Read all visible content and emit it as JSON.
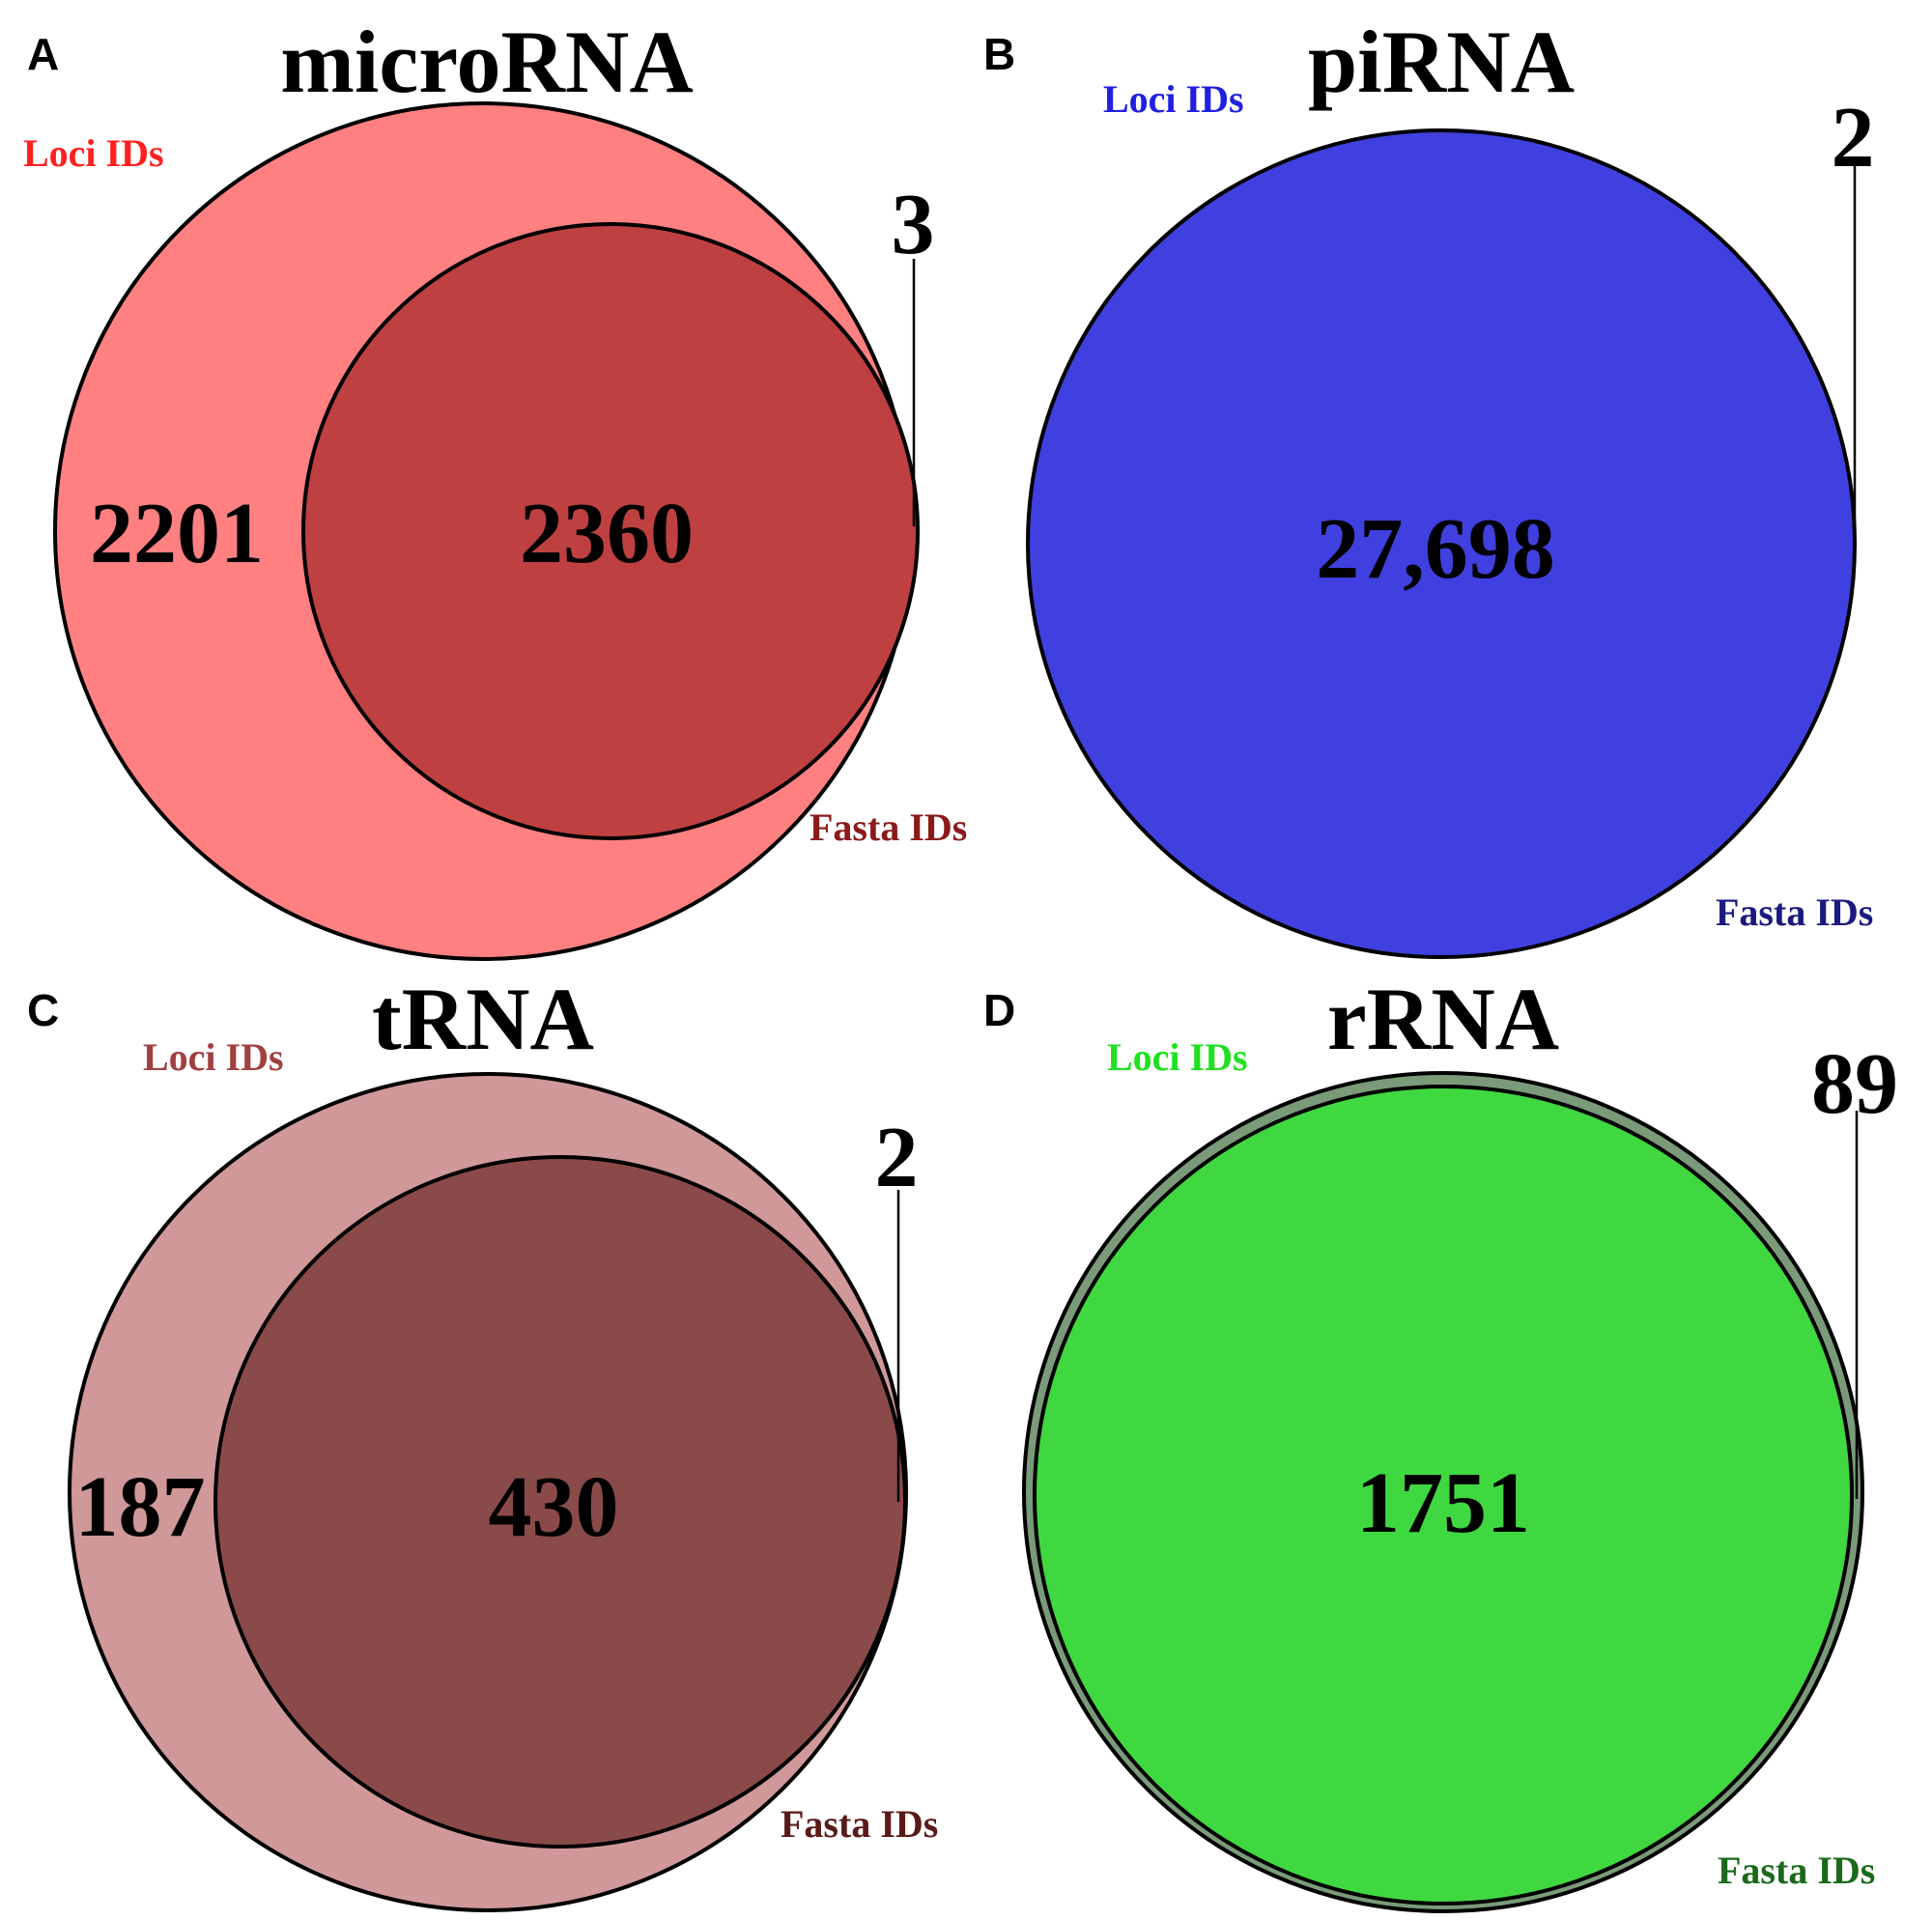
{
  "panels": {
    "a": {
      "letter": "A",
      "title": "microRNA",
      "loci_label": "Loci IDs",
      "fasta_label": "Fasta IDs",
      "loci_only": "2201",
      "both": "2360",
      "fasta_only": "3",
      "colors": {
        "loci": "#ff8080",
        "fasta": "#bf4040",
        "loci_text": "#ff2020",
        "fasta_text": "#8b1a1a"
      }
    },
    "b": {
      "letter": "B",
      "title": "piRNA",
      "loci_label": "Loci IDs",
      "fasta_label": "Fasta IDs",
      "both": "27,698",
      "fasta_only": "2",
      "colors": {
        "fill": "#4040e0",
        "loci_text": "#2020e0",
        "fasta_text": "#1a1a80"
      }
    },
    "c": {
      "letter": "C",
      "title": "tRNA",
      "loci_label": "Loci IDs",
      "fasta_label": "Fasta IDs",
      "loci_only": "187",
      "both": "430",
      "fasta_only": "2",
      "colors": {
        "loci": "#d09898",
        "fasta": "#8b4a4a",
        "loci_text": "#a04040",
        "fasta_text": "#5a1a1a"
      }
    },
    "d": {
      "letter": "D",
      "title": "rRNA",
      "loci_label": "Loci IDs",
      "fasta_label": "Fasta IDs",
      "both": "1751",
      "fasta_only": "89",
      "colors": {
        "fill": "#40d840",
        "ring": "#7a9a7a",
        "loci_text": "#20e020",
        "fasta_text": "#1a6a1a"
      }
    }
  }
}
